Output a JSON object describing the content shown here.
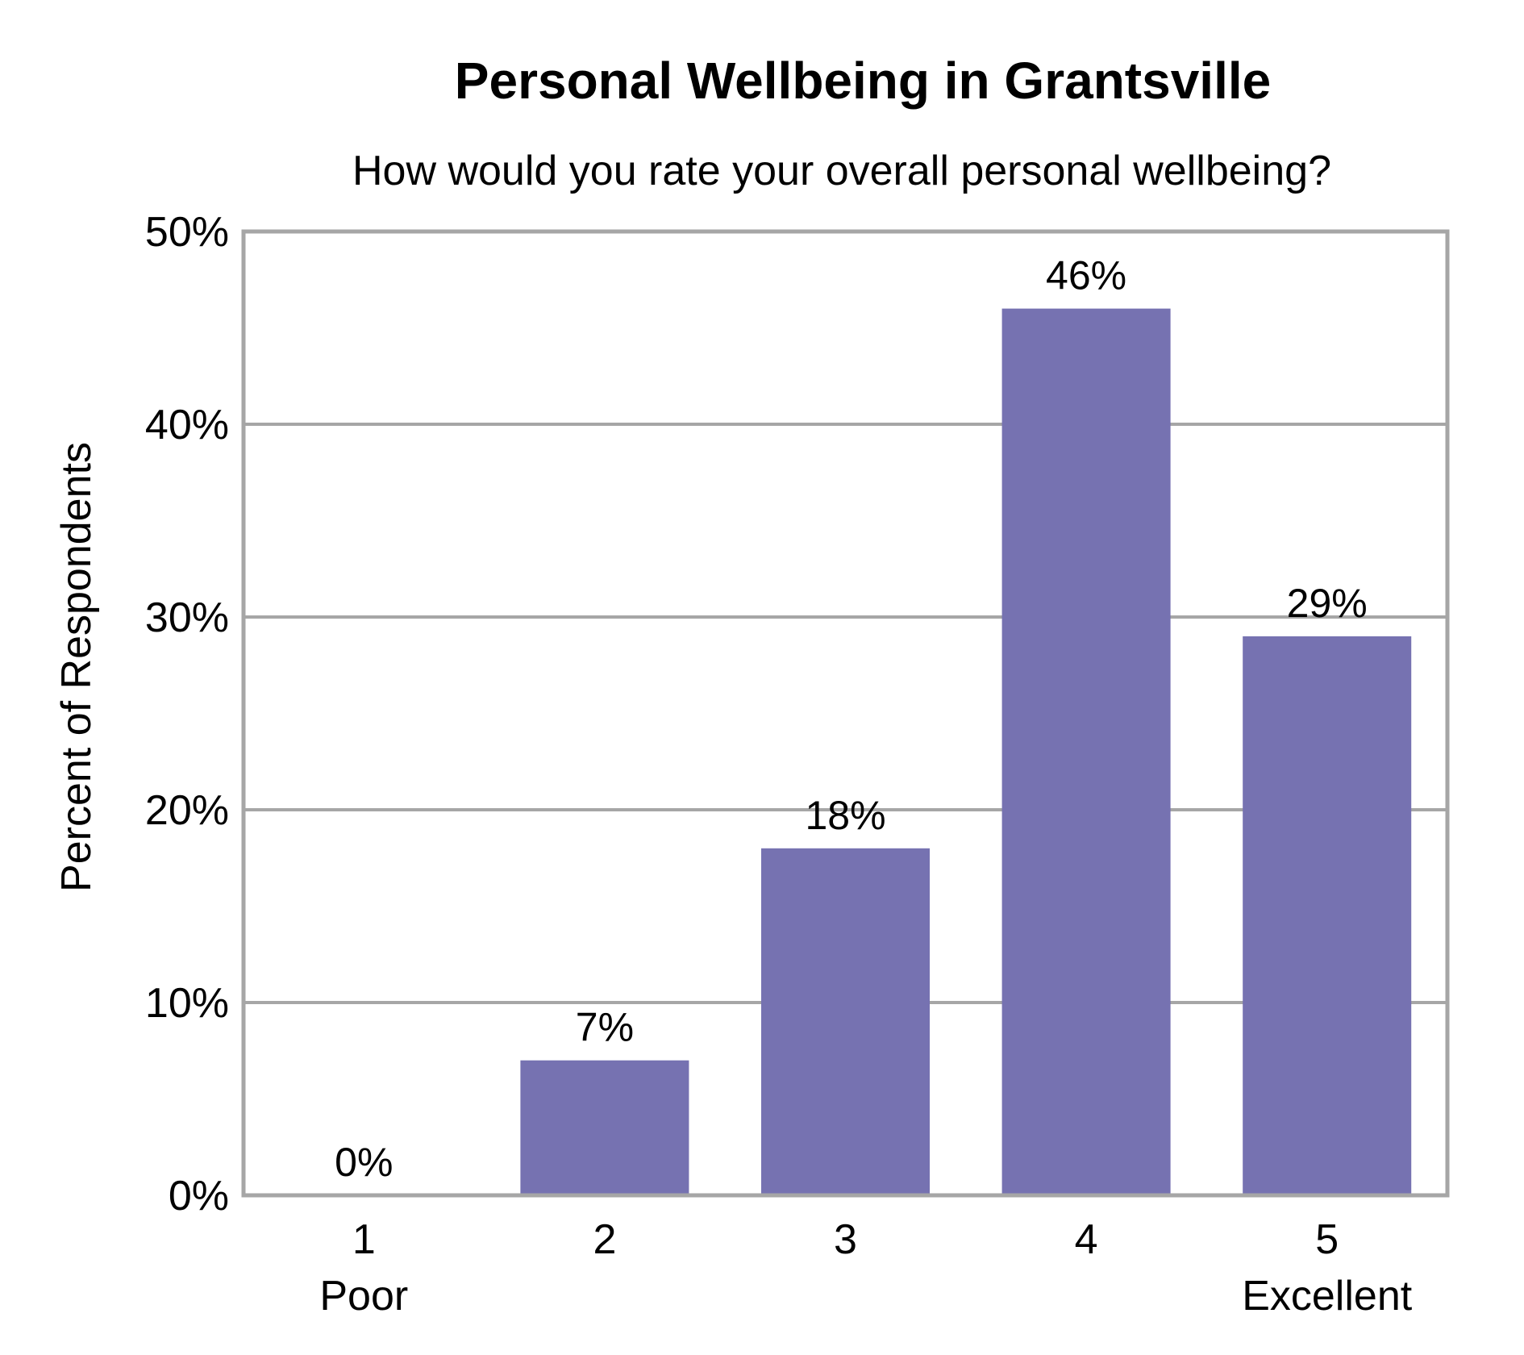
{
  "chart_data": {
    "type": "bar",
    "title": "Personal Wellbeing in Grantsville",
    "subtitle": "How would you rate your overall personal wellbeing?",
    "ylabel": "Percent of Respondents",
    "xlabel": "",
    "categories": [
      "1",
      "2",
      "3",
      "4",
      "5"
    ],
    "category_sublabels": [
      "Poor",
      "",
      "",
      "",
      "Excellent"
    ],
    "values": [
      0,
      7,
      18,
      46,
      29
    ],
    "value_labels": [
      "0%",
      "7%",
      "18%",
      "46%",
      "29%"
    ],
    "ylim": [
      0,
      50
    ],
    "yticks": [
      0,
      10,
      20,
      30,
      40,
      50
    ],
    "ytick_labels": [
      "0%",
      "10%",
      "20%",
      "30%",
      "40%",
      "50%"
    ],
    "grid": true,
    "legend": "none",
    "colors": {
      "bar": "#7672b1",
      "grid": "#a6a6a6",
      "frame": "#a6a6a6"
    }
  }
}
